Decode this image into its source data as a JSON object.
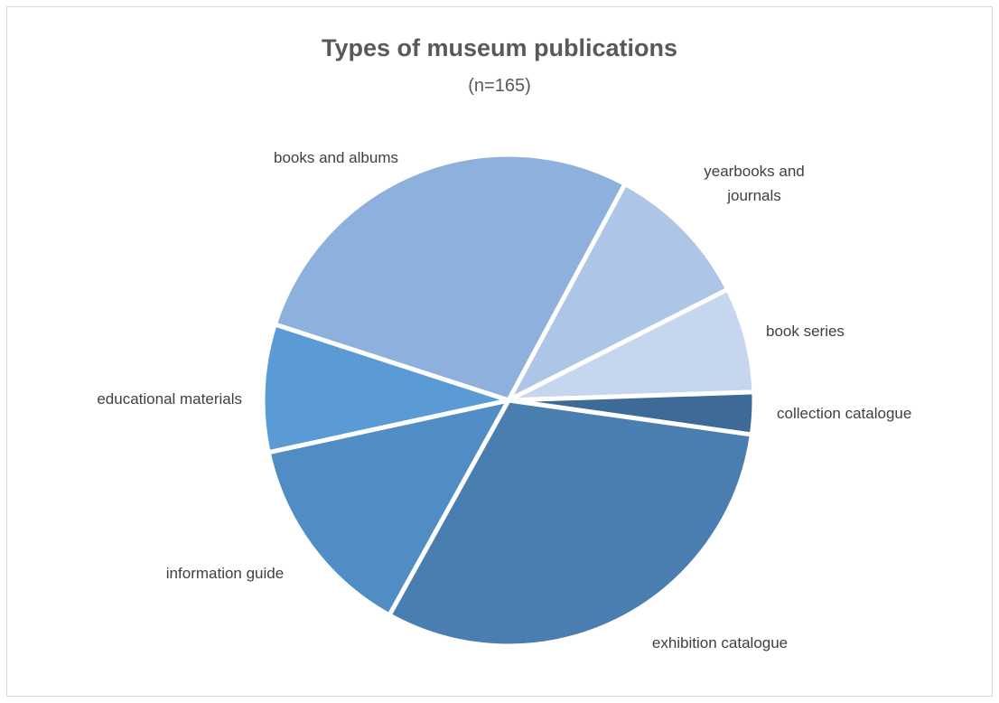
{
  "chart_data": {
    "type": "pie",
    "title": "Types of museum publications",
    "subtitle": "(n=165)",
    "slices": [
      {
        "label": "books and albums",
        "value": 28.2,
        "color": "#8db0dc"
      },
      {
        "label": "yearbooks and journals",
        "label_lines": [
          "yearbooks and",
          "journals"
        ],
        "value": 9.8,
        "color": "#adc5e6"
      },
      {
        "label": "book series",
        "value": 7.0,
        "color": "#c5d6ee"
      },
      {
        "label": "collection catalogue",
        "value": 2.8,
        "color": "#3e6a97"
      },
      {
        "label": "exhibition catalogue",
        "value": 31.2,
        "color": "#4a7eb0"
      },
      {
        "label": "information guide",
        "value": 13.7,
        "color": "#508dc4"
      },
      {
        "label": "educational materials",
        "value": 8.5,
        "color": "#5b9bd5"
      }
    ]
  }
}
